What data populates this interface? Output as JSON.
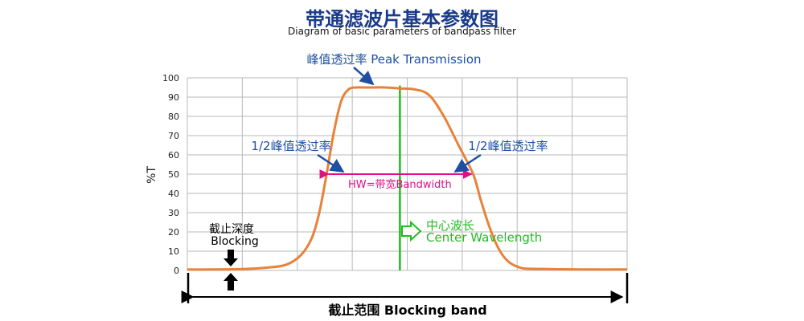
{
  "header": {
    "title": "带通滤波片基本参数图",
    "subtitle": "Diagram of basic parameters of bandpass filter"
  },
  "colors": {
    "title": "#1a3a8a",
    "annotation_blue": "#1e4fa3",
    "curve": "#e8823a",
    "center_line": "#22bb22",
    "bandwidth": "#e0108a",
    "grid": "#b8b8b8",
    "black": "#000000"
  },
  "annotations": {
    "peak": "峰值透过率 Peak Transmission",
    "half_left": "1/2峰值透过率",
    "half_right": "1/2峰值透过率",
    "bandwidth": "HW=带宽Bandwidth",
    "center_cn": "中心波长",
    "center_en": "Center Wavelength",
    "blocking_cn": "截止深度",
    "blocking_en": "Blocking",
    "blocking_band": "截止范围 Blocking band"
  },
  "chart_data": {
    "type": "line",
    "ylabel": "%T",
    "xlabel": "",
    "ylim": [
      0,
      100
    ],
    "y_ticks": [
      "0",
      "10",
      "20",
      "30",
      "40",
      "50",
      "60",
      "70",
      "80",
      "90",
      "100"
    ],
    "grid": true,
    "series": [
      {
        "values_note_free": true,
        "x": [
          0,
          3,
          8,
          11,
          13.5,
          15.5,
          17,
          18,
          19,
          20,
          21,
          22,
          23,
          24,
          25,
          27,
          29,
          31,
          33,
          35,
          37,
          39,
          40,
          41,
          42,
          43,
          44,
          45,
          46,
          48,
          51,
          56,
          60
        ],
        "values": [
          0.5,
          0.5,
          0.8,
          1.5,
          3,
          8,
          17,
          30,
          50,
          72,
          88,
          94,
          95,
          95,
          95,
          95,
          94.5,
          94,
          91,
          80,
          65,
          50,
          37,
          25,
          15,
          8,
          4,
          2,
          1,
          0.8,
          0.6,
          0.5,
          0.5
        ]
      }
    ],
    "center_x": 29,
    "half_max": 50
  }
}
